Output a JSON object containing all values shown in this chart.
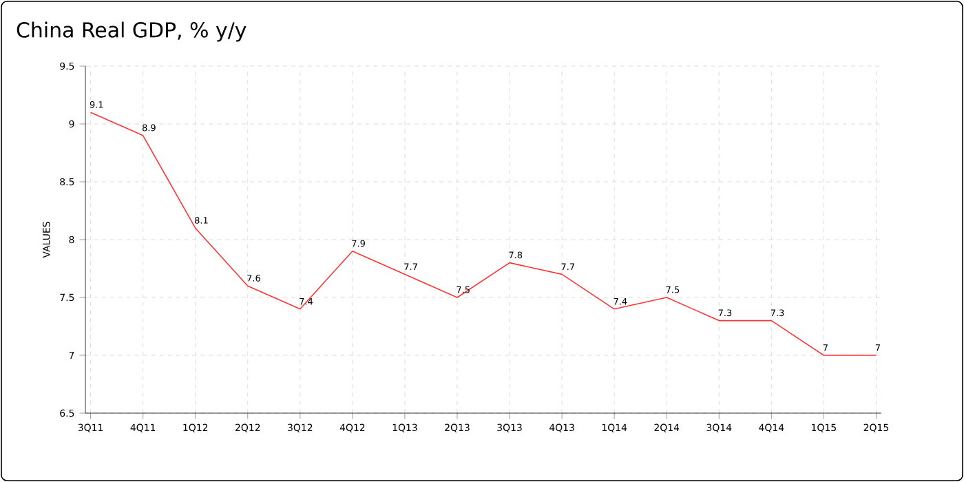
{
  "chart_data": {
    "type": "line",
    "title": "China Real GDP, % y/y",
    "ylabel": "VALUES",
    "categories": [
      "3Q11",
      "4Q11",
      "1Q12",
      "2Q12",
      "3Q12",
      "4Q12",
      "1Q13",
      "2Q13",
      "3Q13",
      "4Q13",
      "1Q14",
      "2Q14",
      "3Q14",
      "4Q14",
      "1Q15",
      "2Q15"
    ],
    "series": [
      {
        "color": "#ff3333",
        "values": [
          9.1,
          8.9,
          8.1,
          7.6,
          7.4,
          7.9,
          7.7,
          7.5,
          7.8,
          7.7,
          7.4,
          7.5,
          7.3,
          7.3,
          7,
          7
        ]
      }
    ],
    "ylim": [
      6.5,
      9.5
    ],
    "yticks": [
      6.5,
      7,
      7.5,
      8,
      8.5,
      9,
      9.5
    ],
    "grid": true,
    "data_labels": true,
    "marker": "none",
    "line_style": "solid"
  }
}
